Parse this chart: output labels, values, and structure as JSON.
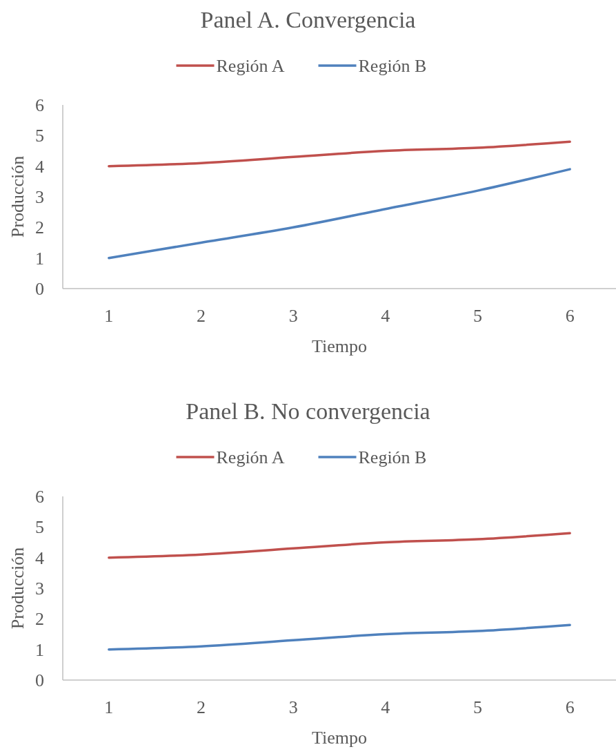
{
  "chart_data": [
    {
      "type": "line",
      "title": "Panel A. Convergencia",
      "xlabel": "Tiempo",
      "ylabel": "Producción",
      "categories": [
        "1",
        "2",
        "3",
        "4",
        "5",
        "6"
      ],
      "series": [
        {
          "name": "Región A",
          "color": "#c0504d",
          "values": [
            4,
            4.1,
            4.3,
            4.5,
            4.6,
            4.8
          ]
        },
        {
          "name": "Región B",
          "color": "#4f81bd",
          "values": [
            1,
            1.5,
            2,
            2.6,
            3.2,
            3.9
          ]
        }
      ],
      "ylim": [
        0,
        6
      ],
      "yticks": [
        0,
        1,
        2,
        3,
        4,
        5,
        6
      ],
      "grid": false,
      "legend": "top",
      "marker": "none",
      "line_style": "solid"
    },
    {
      "type": "line",
      "title": "Panel B. No convergencia",
      "xlabel": "Tiempo",
      "ylabel": "Producción",
      "categories": [
        "1",
        "2",
        "3",
        "4",
        "5",
        "6"
      ],
      "series": [
        {
          "name": "Región A",
          "color": "#c0504d",
          "values": [
            4,
            4.1,
            4.3,
            4.5,
            4.6,
            4.8
          ]
        },
        {
          "name": "Región B",
          "color": "#4f81bd",
          "values": [
            1,
            1.1,
            1.3,
            1.5,
            1.6,
            1.8
          ]
        }
      ],
      "ylim": [
        0,
        6
      ],
      "yticks": [
        0,
        1,
        2,
        3,
        4,
        5,
        6
      ],
      "grid": false,
      "legend": "top",
      "marker": "none",
      "line_style": "solid"
    }
  ]
}
